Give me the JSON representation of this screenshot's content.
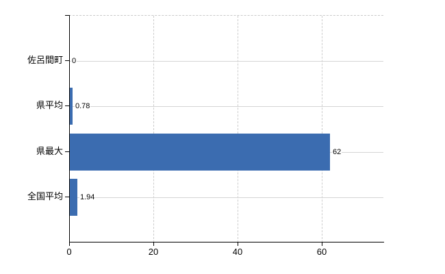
{
  "chart_data": {
    "type": "bar",
    "orientation": "horizontal",
    "title": "",
    "categories": [
      "佐呂間町",
      "県平均",
      "県最大",
      "全国平均"
    ],
    "values": [
      0,
      0.78,
      62,
      1.94
    ],
    "value_labels": [
      "0",
      "0.78",
      "62",
      "1.94"
    ],
    "x_ticks": [
      0,
      20,
      40,
      60
    ],
    "x_tick_labels": [
      "0",
      "20",
      "40",
      "60"
    ],
    "xlim": [
      0,
      74.6
    ],
    "grid": true,
    "legend": false,
    "bar_color": "#3b6cb0",
    "axis_color": "#000000",
    "vertical_gridline_color": "#cccccc",
    "horizontal_gridline_color": "#d4d4d4",
    "background_color": "#ffffff"
  }
}
